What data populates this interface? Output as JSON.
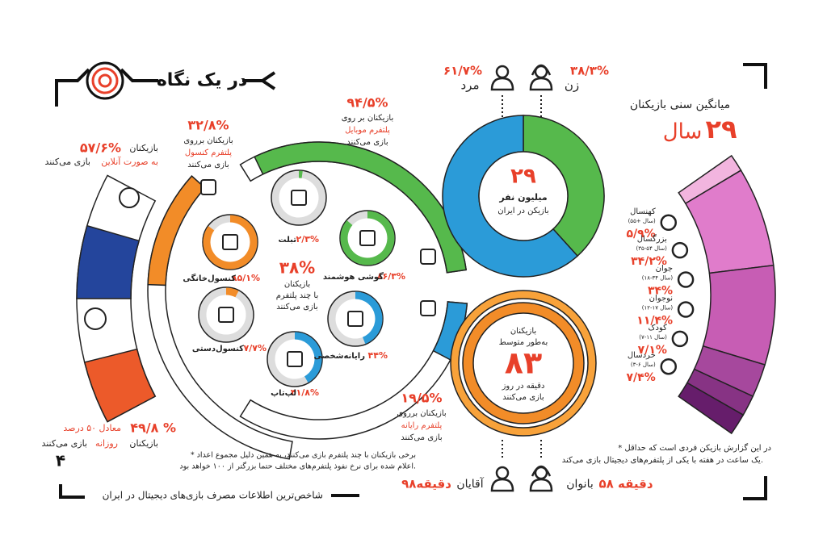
{
  "header": {
    "title": "در یک نگاه",
    "page_number": "۴",
    "footer": "شاخص‌ترین اطلاعات مصرف بازی‌های دیجیتال در ایران"
  },
  "online": {
    "value": 57.6,
    "label": "۵۷/۶%",
    "line1": "بازیکنان",
    "highlight": "به صورت آنلاین",
    "line2": "بازی می‌کنند",
    "color": "#24459c"
  },
  "daily": {
    "value": 49.8,
    "label": "۴۹/۸ %",
    "line1": "معادل ۵۰ درصد",
    "line2": "بازیکنان",
    "highlight": "روزانه",
    "line3": "بازی می‌کنند",
    "color": "#ec5a2a"
  },
  "platforms": [
    {
      "value": 94.5,
      "label": "۹۴/۵%",
      "line1": "بازیکنان بر روی",
      "highlight": "پلتفرم موبایل",
      "line2": "بازی می‌کنند",
      "color": "#56b94c"
    },
    {
      "value": 32.8,
      "label": "۳۲/۸%",
      "line1": "بازیکنان برروی",
      "highlight": "پلتفرم کنسول",
      "line2": "بازی می‌کنند",
      "color": "#f28c28"
    },
    {
      "value": 19.5,
      "label": "۱۹/۵%",
      "line1": "بازیکنان برروی",
      "highlight": "پلتفرم رایانه",
      "line2": "بازی می‌کنند",
      "color": "#2b9bd8"
    }
  ],
  "devices": [
    {
      "name": "گوشی هوشمند",
      "value": 86.3,
      "label": "۸۶/۳%",
      "color": "#56b94c"
    },
    {
      "name": "تبلت",
      "value": 2.3,
      "label": "۲/۳%",
      "color": "#56b94c"
    },
    {
      "name": "کنسول‌خانگی",
      "value": 85.1,
      "label": "۸۵/۱%",
      "color": "#f28c28"
    },
    {
      "name": "کنسول‌دستی",
      "value": 7.7,
      "label": "۷/۷%",
      "color": "#f28c28"
    },
    {
      "name": "لپ‌تاپ",
      "value": 41.8,
      "label": "۴۱/۸%",
      "color": "#2b9bd8"
    },
    {
      "name": "رایانه‌شخصی",
      "value": 44,
      "label": "۴۴%",
      "color": "#2b9bd8"
    }
  ],
  "multi_platform": {
    "value": 38,
    "label": "۳۸%",
    "line1": "بازیکنان",
    "line2": "با چند پلتفرم",
    "line3": "بازی می‌کنند"
  },
  "players": {
    "number": "۲۹",
    "line1": "میلیون نفر",
    "line2": "بازیکن در ایران"
  },
  "gender": [
    {
      "name": "زن",
      "value": 38.3,
      "label": "۳۸/۳%",
      "color": "#56b94c"
    },
    {
      "name": "مرد",
      "value": 61.7,
      "label": "۶۱/۷%",
      "color": "#2b9bd8"
    }
  ],
  "playtime": {
    "line1": "بازیکنان",
    "line2": "به‌طور متوسط",
    "number": "۸۳",
    "line3": "دقیقه در روز",
    "line4": "بازی می‌کنند"
  },
  "playtime_gender": [
    {
      "name": "بانوان",
      "label": "۵۸ دقیقه"
    },
    {
      "name": "آقایان",
      "label": "۹۸دقیقه"
    }
  ],
  "age": {
    "title": "میانگین سنی بازیکنان",
    "average": "۲۹",
    "unit": "سال",
    "groups": [
      {
        "name": "کهنسال",
        "range": "(۵۵+ سال)",
        "value": 5.9,
        "label": "۵/۹%",
        "color": "#f2b5df"
      },
      {
        "name": "بزرگسال",
        "range": "(۳۵-۵۴ سال)",
        "value": 34.2,
        "label": "۳۴/۲%",
        "color": "#e07ccb"
      },
      {
        "name": "جوان",
        "range": "(۱۸-۳۴ سال)",
        "value": 34,
        "label": "۳۴%",
        "color": "#c75db4"
      },
      {
        "name": "نوجوان",
        "range": "(۱۲-۱۷ سال)",
        "value": 11.4,
        "label": "۱۱/۴%",
        "color": "#a6489d"
      },
      {
        "name": "کودک",
        "range": "(۷-۱۱ سال)",
        "value": 7.1,
        "label": "۷/۱%",
        "color": "#873384"
      },
      {
        "name": "خردسال",
        "range": "(۳-۶ سال)",
        "value": 7.4,
        "label": "۷/۴%",
        "color": "#661d6b"
      }
    ]
  },
  "notes": {
    "multi1": "* برخی بازیکنان با چند پلتفرم بازی می‌کنند، به همین دلیل مجموع اعداد",
    "multi2": "اعلام شده برای نرخ نفوذ پلتفرم‌های مختلف حتما بزرگتر از ۱۰۰ خواهد بود.",
    "report1": "* در این گزارش بازیکن فردی است که حداقل",
    "report2": "یک ساعت در هفته با یکی از پلتفرم‌های دیجیتال بازی می‌کند."
  }
}
